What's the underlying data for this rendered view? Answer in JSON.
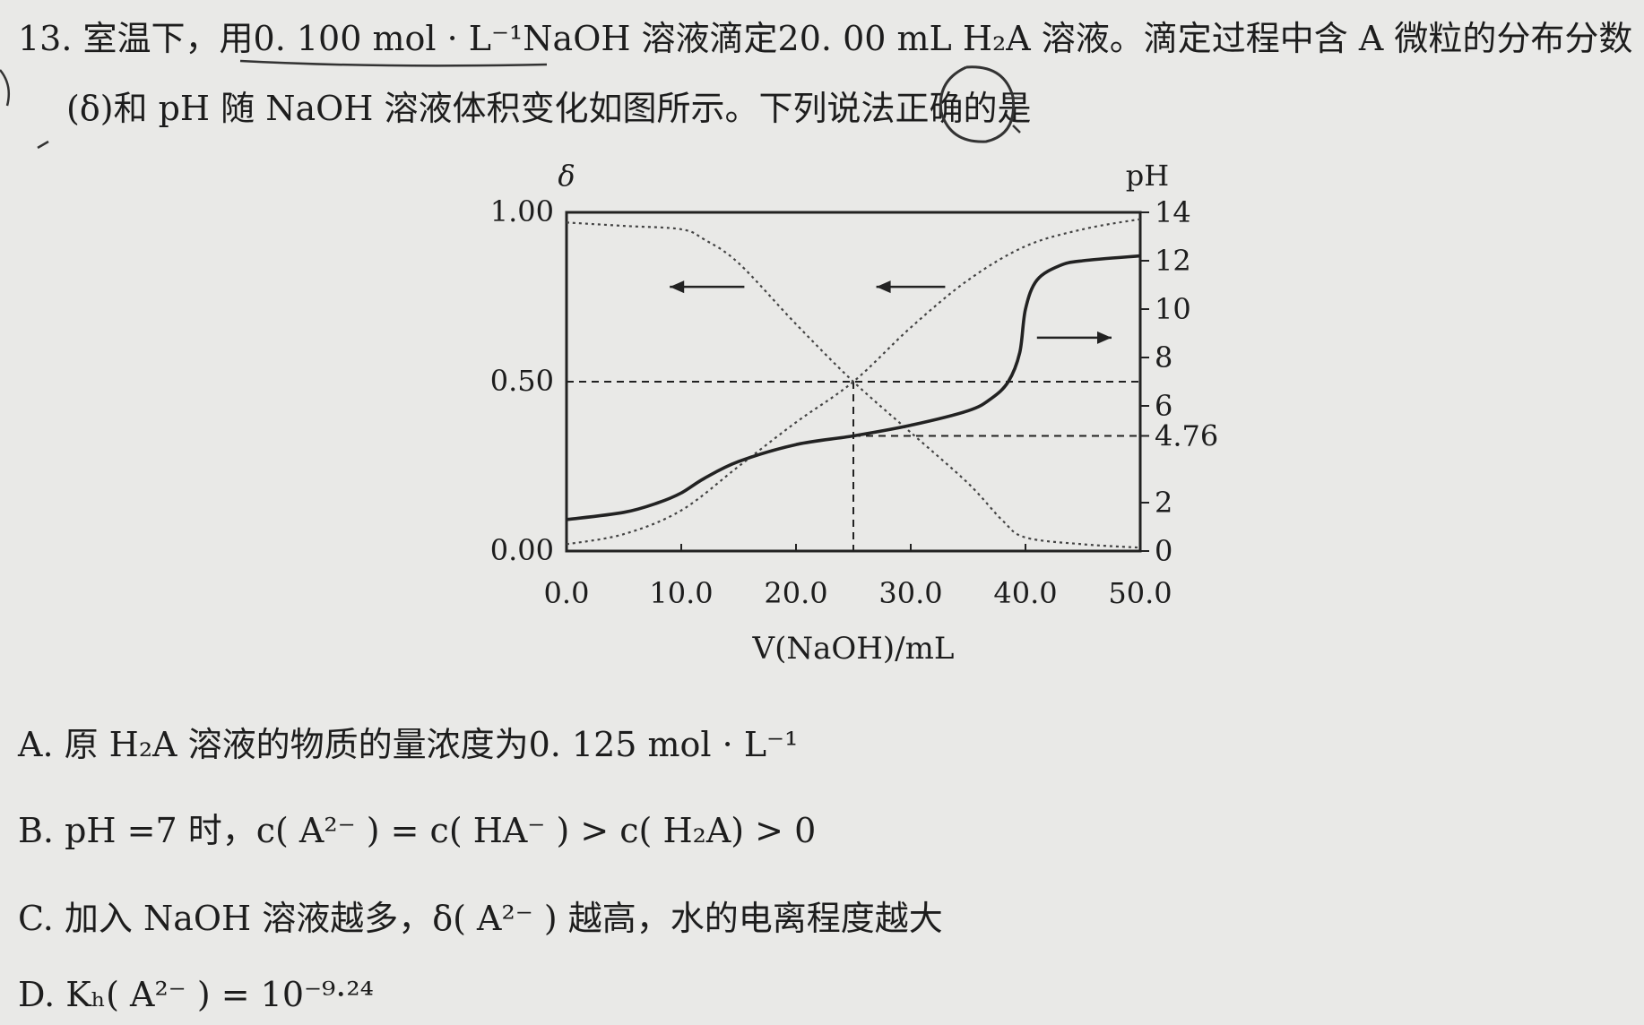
{
  "question": {
    "line1": "13. 室温下，用0. 100 mol · L⁻¹NaOH 溶液滴定20. 00 mL H₂A 溶液。滴定过程中含 A 微粒的分布分数",
    "line2": "(δ)和 pH 随 NaOH 溶液体积变化如图所示。下列说法正确的是"
  },
  "options": {
    "A": "A. 原 H₂A 溶液的物质的量浓度为0. 125 mol · L⁻¹",
    "B": "B. pH =7 时，c( A²⁻ ) = c( HA⁻ ) > c( H₂A) > 0",
    "C": "C. 加入 NaOH 溶液越多，δ( A²⁻ ) 越高，水的电离程度越大",
    "D": "D. Kₕ( A²⁻ ) = 10⁻⁹·²⁴"
  },
  "chart_data": {
    "type": "line",
    "xlabel": "V(NaOH)/mL",
    "ylabel_left": "δ",
    "ylabel_right": "pH",
    "x_ticks": [
      "0.0",
      "10.0",
      "20.0",
      "30.0",
      "40.0",
      "50.0"
    ],
    "left_ticks": [
      "0.00",
      "0.50",
      "1.00"
    ],
    "right_ticks": [
      "0",
      "2",
      "4.76",
      "6",
      "8",
      "10",
      "12",
      "14"
    ],
    "xlim": [
      0,
      50
    ],
    "ylim_left": [
      0,
      1
    ],
    "ylim_right": [
      0,
      14
    ],
    "reference_lines": {
      "delta": 0.5,
      "pH": 4.76,
      "x": 25
    },
    "series": [
      {
        "axis": "left",
        "x": [
          0,
          5,
          10,
          12,
          15,
          20,
          25,
          30,
          35,
          38,
          40,
          45,
          50
        ],
        "y": [
          0.97,
          0.96,
          0.95,
          0.92,
          0.85,
          0.67,
          0.5,
          0.35,
          0.2,
          0.09,
          0.04,
          0.02,
          0.01
        ]
      },
      {
        "axis": "left",
        "x": [
          0,
          5,
          10,
          15,
          20,
          25,
          30,
          35,
          40,
          45,
          50
        ],
        "y": [
          0.02,
          0.05,
          0.12,
          0.25,
          0.38,
          0.5,
          0.66,
          0.8,
          0.9,
          0.95,
          0.98
        ]
      },
      {
        "axis": "right",
        "x": [
          0,
          5,
          8,
          10,
          12,
          15,
          20,
          25,
          30,
          35,
          37,
          38.5,
          39.5,
          40,
          41,
          43,
          45,
          50
        ],
        "y": [
          1.3,
          1.6,
          2.0,
          2.4,
          3.0,
          3.7,
          4.4,
          4.76,
          5.2,
          5.8,
          6.3,
          7.0,
          8.2,
          10.0,
          11.2,
          11.8,
          12.0,
          12.2
        ]
      }
    ]
  }
}
